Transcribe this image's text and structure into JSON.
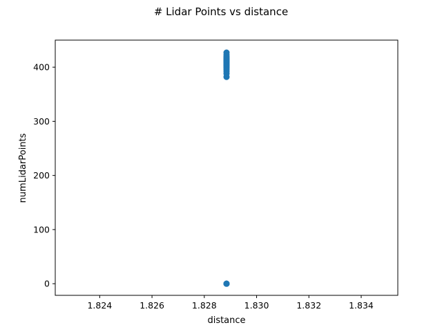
{
  "chart_data": {
    "type": "scatter",
    "title": "# Lidar Points vs distance",
    "xlabel": "distance",
    "ylabel": "numLidarPoints",
    "xlim": [
      1.8223,
      1.8354
    ],
    "ylim": [
      -21.5,
      450
    ],
    "xticks": [
      1.824,
      1.826,
      1.828,
      1.83,
      1.832,
      1.834
    ],
    "xtick_labels": [
      "1.824",
      "1.826",
      "1.828",
      "1.830",
      "1.832",
      "1.834"
    ],
    "yticks": [
      0,
      100,
      200,
      300,
      400
    ],
    "ytick_labels": [
      "0",
      "100",
      "200",
      "300",
      "400"
    ],
    "grid": false,
    "marker_color": "#1f77b4",
    "series": [
      {
        "x": [
          1.82885,
          1.82885,
          1.82885,
          1.82885,
          1.82885,
          1.82885,
          1.82885,
          1.82885,
          1.82885,
          1.82885,
          1.82885,
          1.82885,
          1.82885,
          1.82885,
          1.82885,
          1.82885,
          1.82885,
          1.82885,
          1.82885,
          1.82885,
          1.82885,
          1.82885,
          1.82885,
          1.82885,
          1.82885,
          1.82885
        ],
        "y": [
          0,
          0,
          0,
          382,
          388,
          392,
          395,
          398,
          400,
          402,
          404,
          405,
          406,
          408,
          409,
          410,
          411,
          412,
          413,
          414,
          415,
          416,
          418,
          420,
          423,
          427
        ]
      }
    ]
  }
}
